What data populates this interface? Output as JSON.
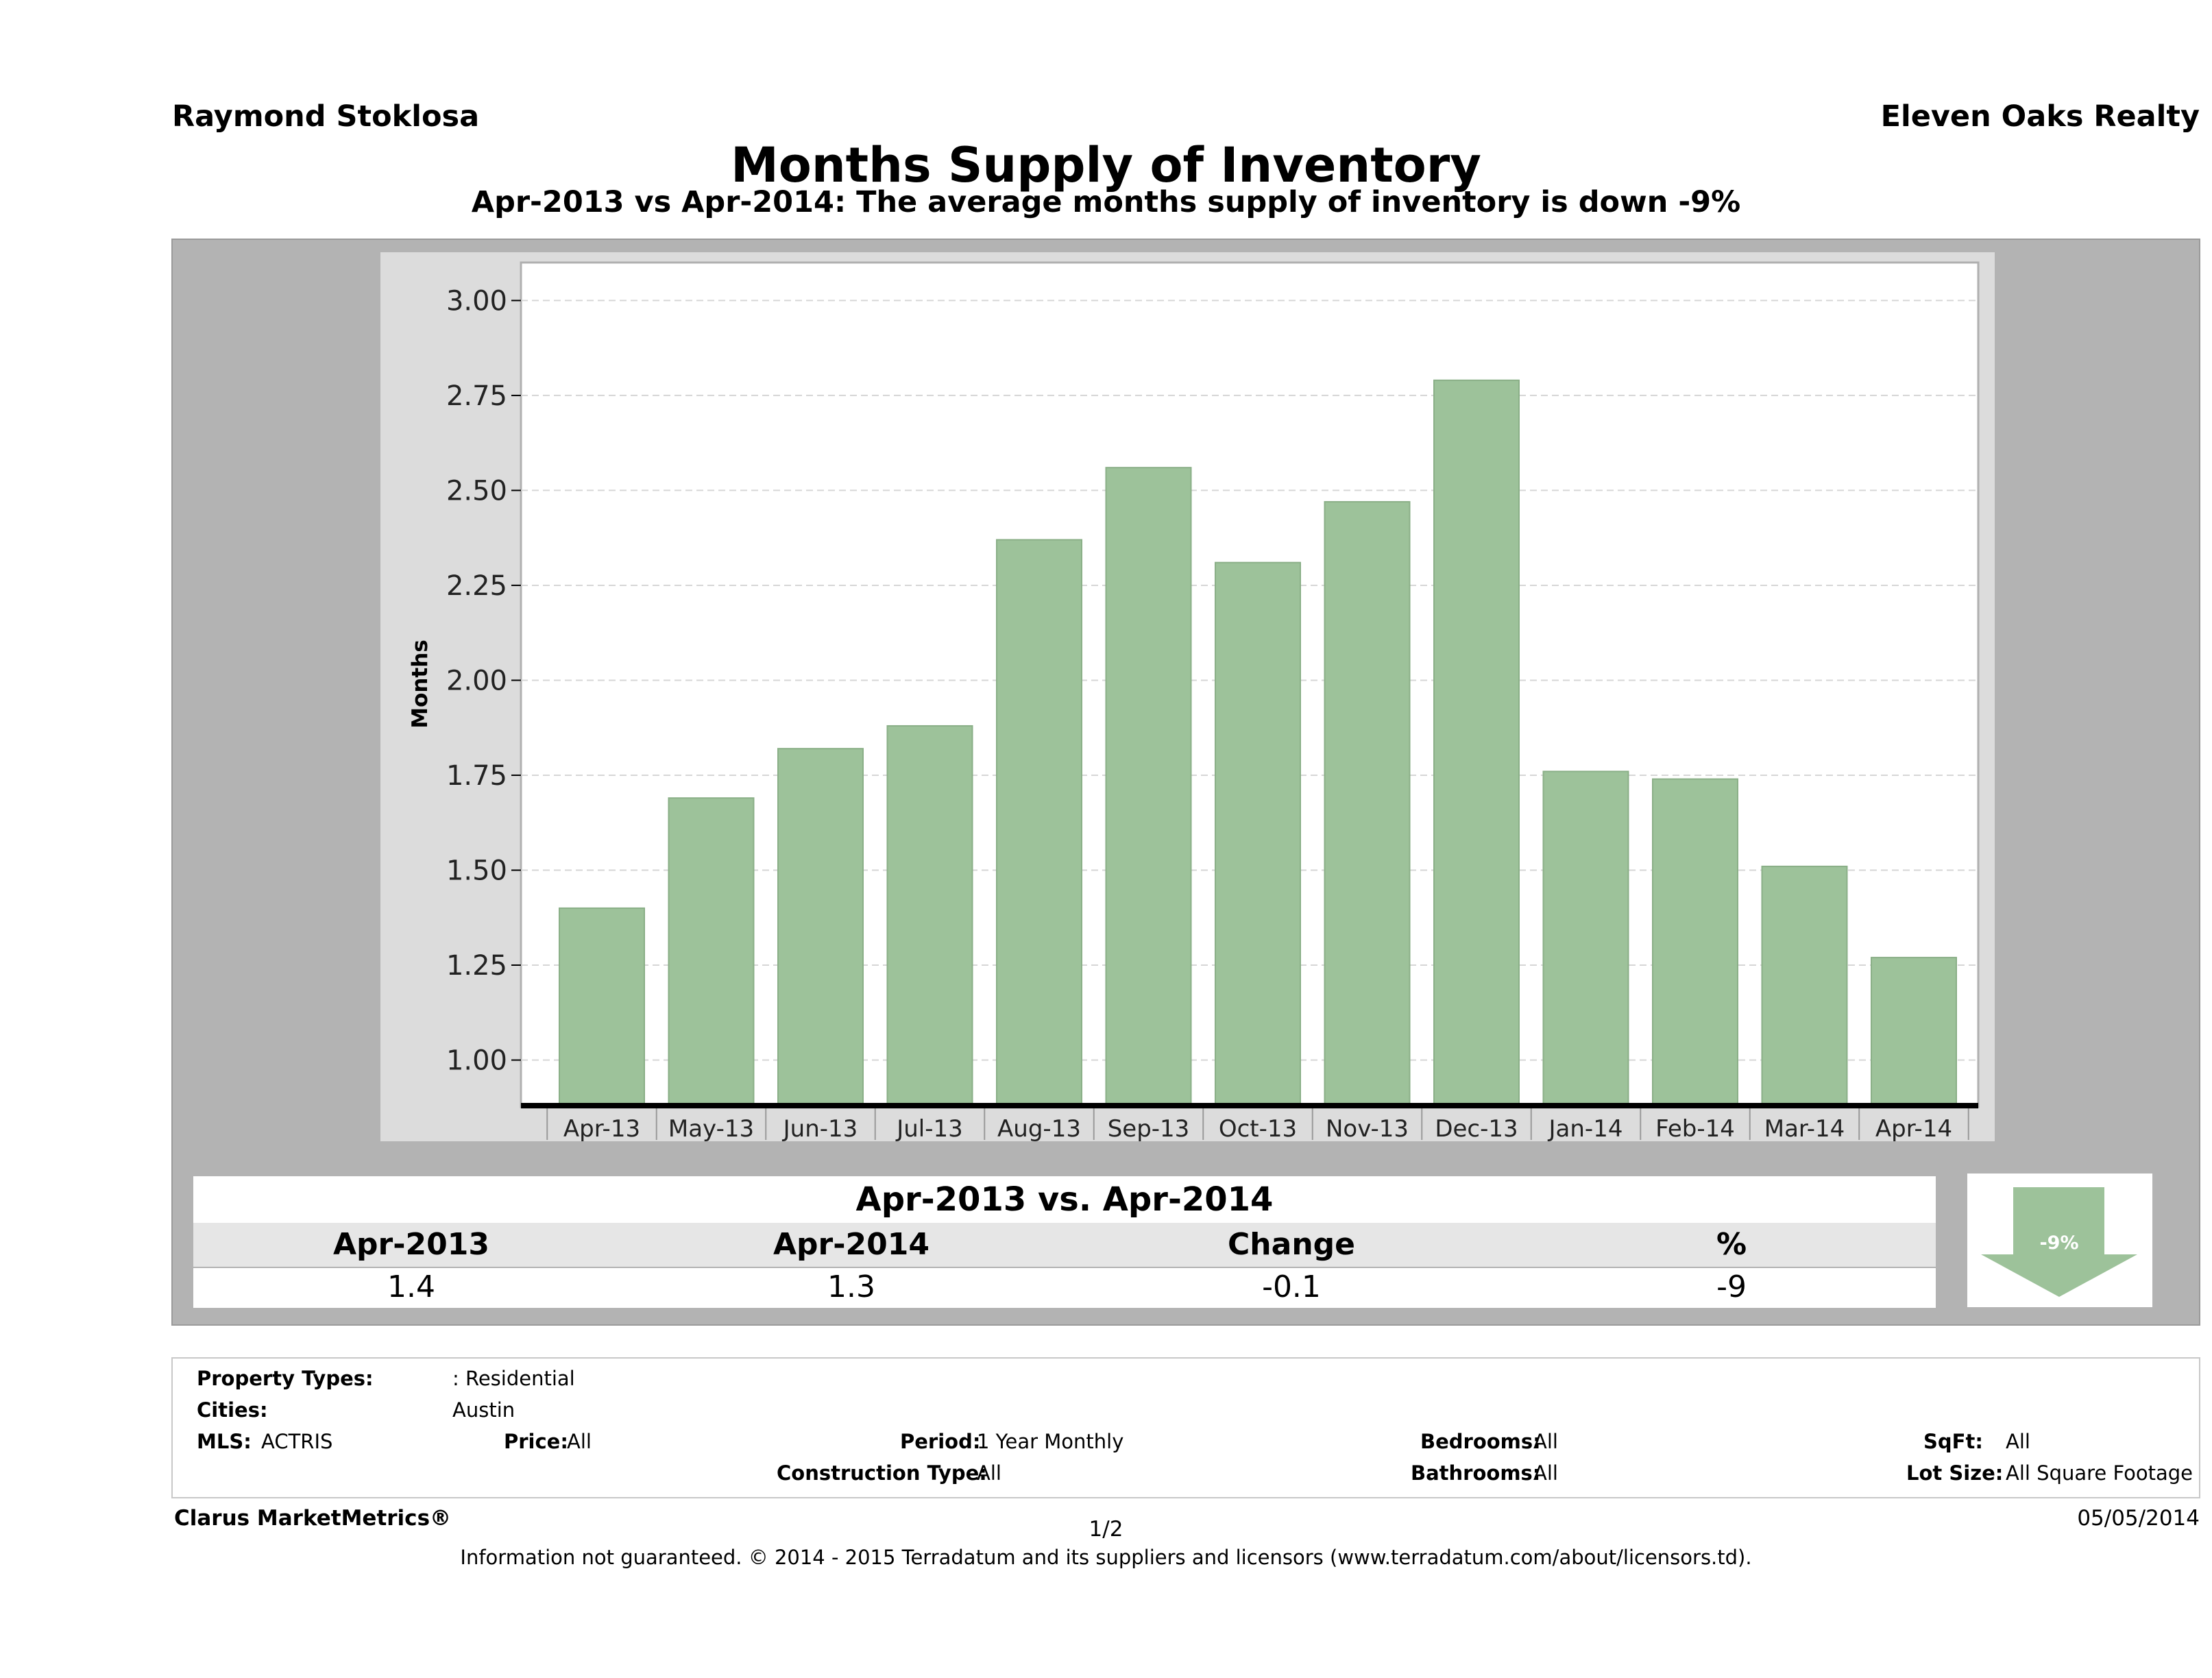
{
  "header": {
    "agent": "Raymond Stoklosa",
    "company": "Eleven Oaks Realty"
  },
  "chart_data": {
    "type": "bar",
    "title": "Months Supply of Inventory",
    "subtitle": "Apr-2013 vs Apr-2014: The average months supply of inventory is down -9%",
    "ylabel": "Months",
    "xlabel": "",
    "ylim": [
      0.88,
      3.1
    ],
    "yticks": [
      "1.00",
      "1.25",
      "1.50",
      "1.75",
      "2.00",
      "2.25",
      "2.50",
      "2.75",
      "3.00"
    ],
    "grid": true,
    "bar_color": "#9dc29a",
    "categories": [
      "Apr-13",
      "May-13",
      "Jun-13",
      "Jul-13",
      "Aug-13",
      "Sep-13",
      "Oct-13",
      "Nov-13",
      "Dec-13",
      "Jan-14",
      "Feb-14",
      "Mar-14",
      "Apr-14"
    ],
    "values": [
      1.4,
      1.69,
      1.82,
      1.88,
      2.37,
      2.56,
      2.31,
      2.47,
      2.79,
      1.76,
      1.74,
      1.51,
      1.27
    ]
  },
  "summary": {
    "title": "Apr-2013 vs. Apr-2014",
    "headers": [
      "Apr-2013",
      "Apr-2014",
      "Change",
      "%"
    ],
    "values": [
      "1.4",
      "1.3",
      "-0.1",
      "-9"
    ],
    "badge": "-9%",
    "badge_color": "#9dc29a"
  },
  "filters": {
    "property_types_label": "Property Types:",
    "property_types_value": ": Residential",
    "cities_label": "Cities:",
    "cities_value": "Austin",
    "mls_label": "MLS:",
    "mls_value": "ACTRIS",
    "price_label": "Price:",
    "price_value": "All",
    "period_label": "Period:",
    "period_value": "1 Year Monthly",
    "construction_label": "Construction Type:",
    "construction_value": "All",
    "bedrooms_label": "Bedrooms:",
    "bedrooms_value": "All",
    "bathrooms_label": "Bathrooms:",
    "bathrooms_value": "All",
    "sqft_label": "SqFt:",
    "sqft_value": "All",
    "lotsize_label": "Lot Size:",
    "lotsize_value": "All Square Footage"
  },
  "footer": {
    "brand": "Clarus MarketMetrics®",
    "page": "1/2",
    "date": "05/05/2014",
    "disclaimer": "Information not guaranteed. © 2014 - 2015 Terradatum and its suppliers and licensors (www.terradatum.com/about/licensors.td)."
  }
}
